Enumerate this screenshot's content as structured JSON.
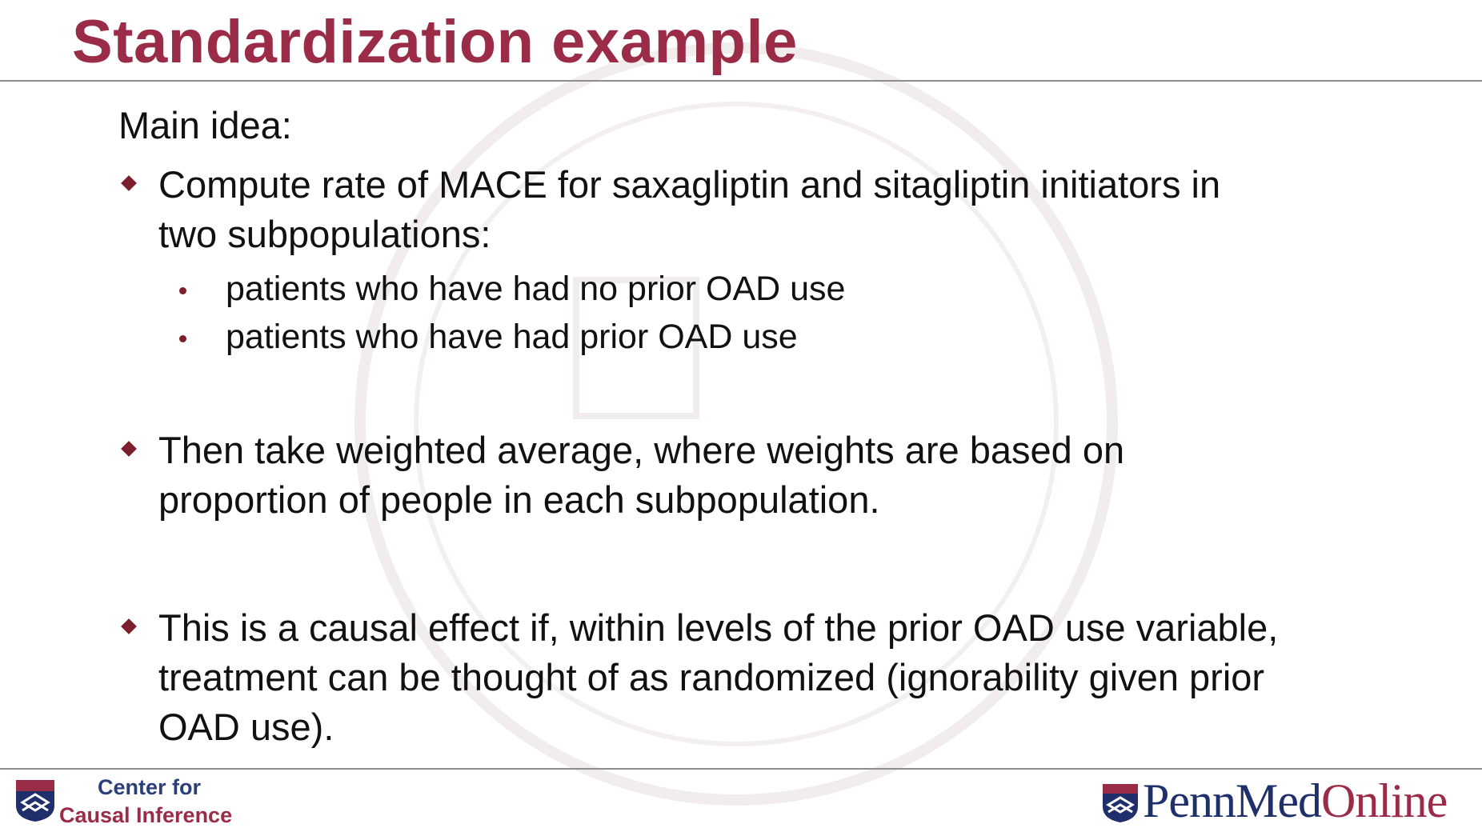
{
  "slide": {
    "title": "Standardization example",
    "main_idea": "Main idea:",
    "bullets": [
      {
        "text": "Compute rate of MACE for saxagliptin and sitagliptin initiators in two subpopulations:",
        "line1": "Compute rate of MACE for saxagliptin and sitagliptin initiators in",
        "line2": "two subpopulations:",
        "subitems": [
          "patients who have had no prior OAD use",
          "patients who have had prior OAD use"
        ]
      },
      {
        "line1": "Then take weighted average, where weights are based on",
        "line2": "proportion of people in each subpopulation."
      },
      {
        "line1": "This is a causal effect if, within levels of the prior OAD use variable,",
        "line2": "treatment can be thought of as randomized (ignorability given prior",
        "line3": "OAD use)."
      }
    ]
  },
  "footer": {
    "left_logo": {
      "line1": "Center for",
      "line2": "Causal Inference"
    },
    "right_logo": {
      "penn_med": "PennMed",
      "online": "Online"
    }
  },
  "colors": {
    "title": "#9b2c48",
    "bullet_marker": "#7a1f2b",
    "navy": "#1f2f6b"
  },
  "icons": [
    "diamond-bullet-icon",
    "dot-bullet-icon",
    "penn-shield-icon"
  ]
}
